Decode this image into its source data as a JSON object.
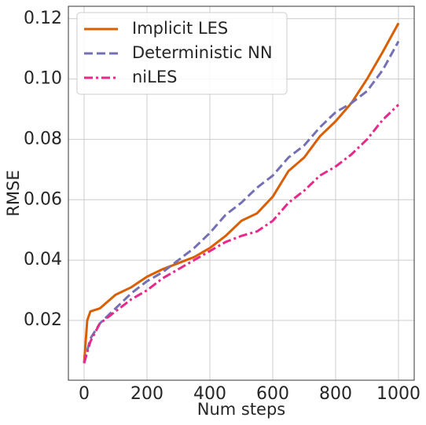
{
  "chart_data": {
    "type": "line",
    "xlabel": "Num steps",
    "ylabel": "RMSE",
    "x": [
      0,
      10,
      20,
      50,
      100,
      150,
      200,
      250,
      300,
      350,
      400,
      450,
      500,
      550,
      600,
      650,
      700,
      750,
      800,
      850,
      900,
      950,
      1000
    ],
    "series": [
      {
        "name": "Implicit LES",
        "color": "#d95f02",
        "dash": "solid",
        "values": [
          0.006,
          0.02,
          0.023,
          0.024,
          0.0285,
          0.031,
          0.0345,
          0.037,
          0.039,
          0.041,
          0.044,
          0.048,
          0.053,
          0.0555,
          0.061,
          0.0695,
          0.074,
          0.081,
          0.086,
          0.092,
          0.1,
          0.109,
          0.1185
        ]
      },
      {
        "name": "Deterministic NN",
        "color": "#7570b3",
        "dash": "dashed",
        "values": [
          0.006,
          0.01,
          0.014,
          0.019,
          0.024,
          0.029,
          0.033,
          0.036,
          0.04,
          0.044,
          0.049,
          0.055,
          0.059,
          0.064,
          0.068,
          0.074,
          0.078,
          0.084,
          0.089,
          0.092,
          0.096,
          0.103,
          0.1125
        ]
      },
      {
        "name": "niLES",
        "color": "#e7298a",
        "dash": "dashdot",
        "values": [
          0.0058,
          0.0095,
          0.013,
          0.019,
          0.023,
          0.027,
          0.03,
          0.034,
          0.037,
          0.04,
          0.043,
          0.046,
          0.048,
          0.0495,
          0.053,
          0.059,
          0.063,
          0.068,
          0.071,
          0.075,
          0.08,
          0.0865,
          0.0915
        ]
      }
    ],
    "xlim": [
      -50,
      1050
    ],
    "xticks": [
      0,
      200,
      400,
      600,
      800,
      1000
    ],
    "ylim": [
      0.0002,
      0.1241
    ],
    "yticks": [
      0.02,
      0.04,
      0.06,
      0.08,
      {
        "value": 0.1,
        "label": "0.10"
      },
      0.12
    ],
    "grid": true,
    "legend": "upper left"
  }
}
